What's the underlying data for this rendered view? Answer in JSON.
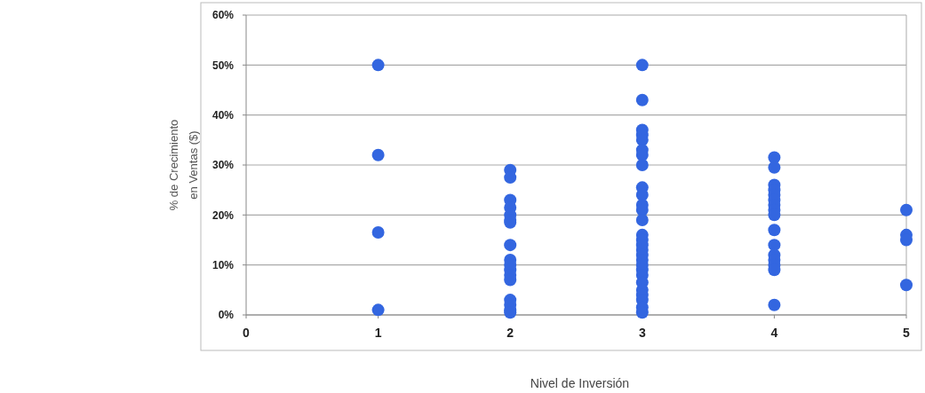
{
  "chart_data": {
    "type": "scatter",
    "xlabel": "Nivel de Inversión",
    "ylabel": "% de Crecimiento\nen Ventas ($)",
    "marker": "circle",
    "grid": "y",
    "xlim": [
      0,
      5
    ],
    "xticks": [
      0,
      1,
      2,
      3,
      4,
      5
    ],
    "ylim": [
      0,
      60
    ],
    "yticks": [
      {
        "value": 0,
        "label": "0%"
      },
      {
        "value": 10,
        "label": "10%"
      },
      {
        "value": 20,
        "label": "20%"
      },
      {
        "value": 30,
        "label": "30%"
      },
      {
        "value": 40,
        "label": "40%"
      },
      {
        "value": 50,
        "label": "50%"
      },
      {
        "value": 60,
        "label": "60%"
      }
    ],
    "series": [
      {
        "color": "#3366e0",
        "x": [
          1,
          1,
          1,
          1,
          2,
          2,
          2,
          2,
          2,
          2,
          2,
          2,
          2,
          2,
          2,
          2,
          2,
          2,
          2,
          2,
          2,
          3,
          3,
          3,
          3,
          3,
          3,
          3,
          3,
          3,
          3,
          3,
          3,
          3,
          3,
          3,
          3,
          3,
          3,
          3,
          3,
          3,
          3,
          3,
          3,
          3,
          3,
          3,
          3,
          4,
          4,
          4,
          4,
          4,
          4,
          4,
          4,
          4,
          4,
          4,
          4,
          4,
          4,
          4,
          4,
          5,
          5,
          5,
          5
        ],
        "values": [
          50,
          32,
          16.5,
          1,
          29,
          27.5,
          23,
          21.5,
          20,
          19,
          18.5,
          14,
          11,
          10,
          9,
          8,
          7,
          3,
          2,
          1,
          0.5,
          50,
          43,
          37,
          36,
          35,
          33,
          32,
          30,
          25.5,
          24,
          22,
          21,
          19,
          16,
          15,
          14,
          13,
          12,
          11,
          10,
          9,
          8,
          6.5,
          5,
          4,
          3,
          1.5,
          0.5,
          31.5,
          29.5,
          26,
          25,
          24,
          23,
          22,
          21,
          20,
          17,
          14,
          12,
          11,
          10,
          9,
          2,
          21,
          16,
          15,
          6
        ]
      }
    ]
  }
}
